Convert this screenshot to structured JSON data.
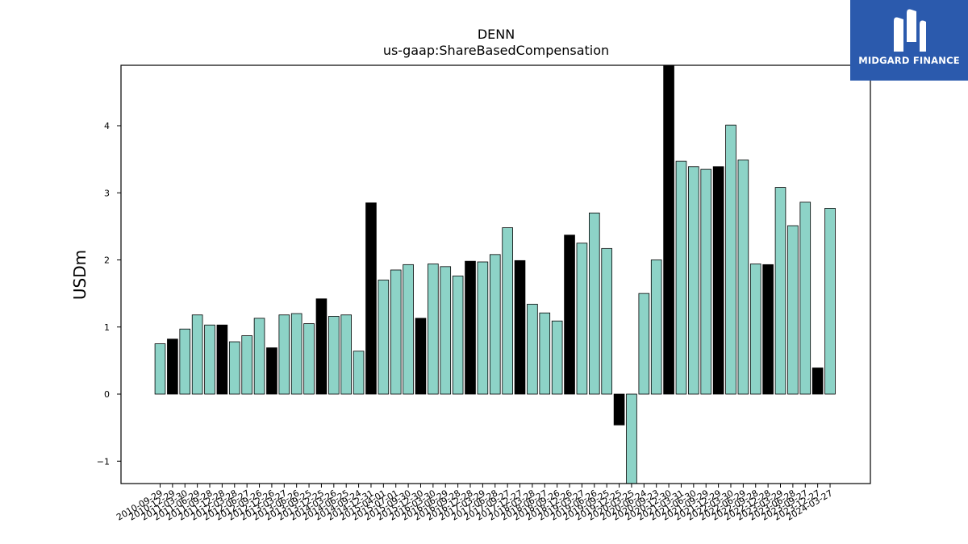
{
  "chart_data": {
    "type": "bar",
    "title": "DENN",
    "subtitle": "us-gaap:ShareBasedCompensation",
    "xlabel": "",
    "ylabel": "USDm",
    "ylim": [
      -1.35,
      4.9
    ],
    "yticks": [
      -1,
      0,
      1,
      2,
      3,
      4
    ],
    "ytick_labels": [
      "−1",
      "0",
      "1",
      "2",
      "3",
      "4"
    ],
    "grid": false,
    "colors": {
      "quarter": "#8dd3c7",
      "annual": "#000000",
      "edge": "#000000"
    },
    "categories": [
      "2010-09-29",
      "2010-12-29",
      "2011-03-30",
      "2011-06-29",
      "2011-09-28",
      "2011-12-28",
      "2012-03-28",
      "2012-06-27",
      "2012-09-26",
      "2012-12-26",
      "2013-03-27",
      "2013-06-26",
      "2013-09-25",
      "2013-12-25",
      "2014-03-26",
      "2014-06-25",
      "2014-09-24",
      "2014-12-31",
      "2015-04-01",
      "2015-07-01",
      "2015-09-30",
      "2015-12-30",
      "2016-03-30",
      "2016-06-29",
      "2016-09-28",
      "2016-12-28",
      "2017-03-29",
      "2017-06-28",
      "2017-09-27",
      "2017-12-27",
      "2018-03-28",
      "2018-06-27",
      "2018-09-26",
      "2018-12-26",
      "2019-03-27",
      "2019-06-26",
      "2019-09-25",
      "2019-12-25",
      "2020-03-25",
      "2020-06-24",
      "2020-09-23",
      "2020-12-30",
      "2021-03-31",
      "2021-06-30",
      "2021-09-29",
      "2021-12-29",
      "2022-03-30",
      "2022-06-29",
      "2022-09-28",
      "2022-12-28",
      "2023-03-29",
      "2023-06-28",
      "2023-09-27",
      "2023-12-27",
      "2024-03-27"
    ],
    "values": [
      0.75,
      0.82,
      0.97,
      1.18,
      1.03,
      1.03,
      0.78,
      0.87,
      1.13,
      0.69,
      1.18,
      1.2,
      1.05,
      1.42,
      1.16,
      1.18,
      0.64,
      2.85,
      1.7,
      1.85,
      1.93,
      1.13,
      1.94,
      1.9,
      1.76,
      1.98,
      1.97,
      2.08,
      2.48,
      1.99,
      1.34,
      1.21,
      1.09,
      2.37,
      2.25,
      2.7,
      2.17,
      -0.46,
      -1.35,
      1.5,
      2.0,
      4.9,
      3.47,
      3.39,
      3.35,
      3.39,
      4.01,
      3.49,
      1.94,
      1.93,
      3.08,
      2.51,
      2.86,
      0.39,
      2.77
    ],
    "annual": [
      false,
      true,
      false,
      false,
      false,
      true,
      false,
      false,
      false,
      true,
      false,
      false,
      false,
      true,
      false,
      false,
      false,
      true,
      false,
      false,
      false,
      true,
      false,
      false,
      false,
      true,
      false,
      false,
      false,
      true,
      false,
      false,
      false,
      true,
      false,
      false,
      false,
      true,
      false,
      false,
      false,
      true,
      false,
      false,
      false,
      true,
      false,
      false,
      false,
      true,
      false,
      false,
      false,
      true,
      false
    ]
  },
  "logo": {
    "text": "MIDGARD FINANCE",
    "mark": "midgard-logo-icon"
  }
}
